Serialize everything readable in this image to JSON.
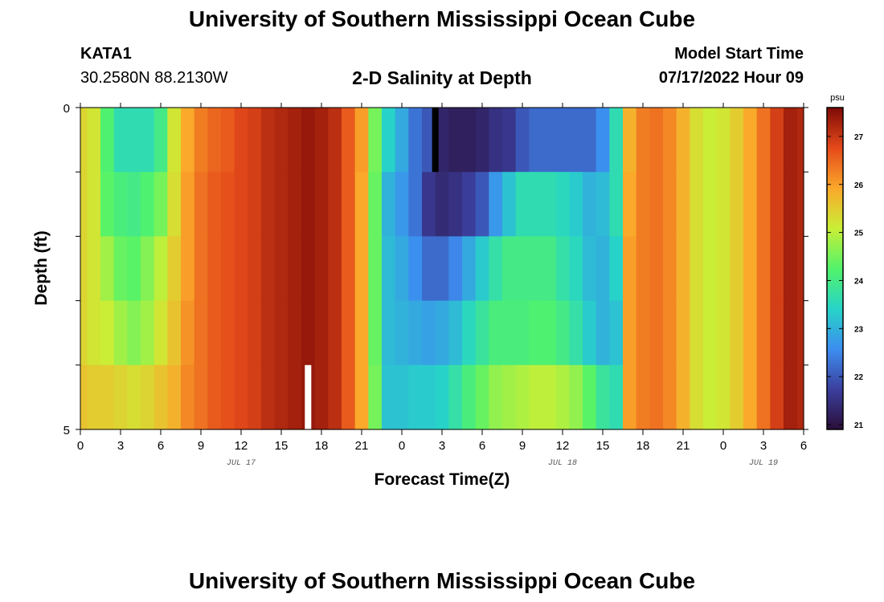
{
  "header": {
    "title": "University of Southern Mississippi Ocean Cube",
    "station_id": "KATA1",
    "station_coords": "30.2580N  88.2130W",
    "plot_title": "2-D Salinity at Depth",
    "model_label": "Model Start Time",
    "model_time": "07/17/2022 Hour 09"
  },
  "footer": {
    "title": "University of Southern Mississippi Ocean Cube"
  },
  "chart_data": {
    "type": "heatmap",
    "title": "2-D Salinity at Depth",
    "xlabel": "Forecast Time(Z)",
    "ylabel": "Depth (ft)",
    "ylim": [
      0,
      5
    ],
    "y_tick_labels": [
      "0",
      "5"
    ],
    "x_tick_labels": [
      "0",
      "3",
      "6",
      "9",
      "12",
      "15",
      "18",
      "21",
      "0",
      "3",
      "6",
      "9",
      "12",
      "15",
      "18",
      "21",
      "0",
      "3",
      "6"
    ],
    "date_labels": [
      {
        "label": "JUL 17",
        "hour": 12
      },
      {
        "label": "JUL 18",
        "hour": 36
      },
      {
        "label": "JUL 19",
        "hour": 51
      }
    ],
    "x_hours_range": [
      0,
      54
    ],
    "colorbar": {
      "unit": "psu",
      "min": 20.9,
      "max": 27.6,
      "tick_values": [
        21,
        22,
        23,
        24,
        25,
        26,
        27
      ],
      "colors": [
        "#2a0e38",
        "#3b3f9e",
        "#3c8ef0",
        "#27d4c7",
        "#52f36a",
        "#c9ef36",
        "#fba72a",
        "#e4491a",
        "#7e0a06"
      ]
    },
    "depth_layers": [
      0,
      1,
      2,
      3,
      4,
      5
    ],
    "column_hours": [
      0,
      1,
      2,
      3,
      4,
      5,
      6,
      7,
      8,
      9,
      10,
      11,
      12,
      13,
      14,
      15,
      16,
      17,
      18,
      19,
      20,
      21,
      22,
      23,
      24,
      25,
      26,
      27,
      28,
      29,
      30,
      31,
      32,
      33,
      34,
      35,
      36,
      37,
      38,
      39,
      40,
      41,
      42,
      43,
      44,
      45,
      46,
      47,
      48,
      49,
      50,
      51,
      52,
      53,
      54
    ],
    "salinity_psu": [
      [
        25.4,
        25.2,
        24.2,
        23.6,
        23.6,
        23.6,
        24.0,
        25.2,
        25.9,
        26.3,
        26.5,
        26.6,
        26.8,
        26.9,
        27.1,
        27.2,
        27.3,
        27.4,
        27.3,
        27.1,
        26.6,
        26.0,
        24.5,
        23.4,
        22.9,
        22.3,
        22.0,
        21.3,
        21.2,
        21.2,
        21.3,
        21.5,
        21.6,
        22.0,
        22.2,
        22.2,
        22.2,
        22.2,
        22.2,
        22.6,
        23.6,
        25.8,
        26.3,
        26.4,
        26.2,
        25.8,
        25.3,
        25.1,
        25.2,
        25.5,
        25.9,
        26.4,
        26.9,
        27.3,
        27.2
      ],
      [
        25.4,
        25.2,
        24.3,
        24.1,
        24.0,
        24.2,
        24.5,
        25.3,
        26.0,
        26.4,
        26.6,
        26.7,
        26.8,
        26.9,
        27.1,
        27.2,
        27.3,
        27.4,
        27.3,
        27.1,
        26.6,
        25.9,
        24.4,
        23.0,
        22.7,
        22.3,
        21.6,
        21.4,
        21.5,
        21.7,
        22.0,
        22.7,
        23.2,
        23.6,
        23.6,
        23.6,
        23.5,
        23.3,
        23.0,
        23.1,
        23.6,
        25.9,
        26.3,
        26.4,
        26.2,
        25.8,
        25.3,
        25.1,
        25.2,
        25.5,
        25.9,
        26.4,
        26.9,
        27.3,
        27.2
      ],
      [
        25.4,
        25.2,
        24.8,
        24.4,
        24.3,
        24.6,
        25.0,
        25.5,
        26.0,
        26.4,
        26.6,
        26.7,
        26.8,
        26.9,
        27.1,
        27.2,
        27.3,
        27.4,
        27.3,
        27.1,
        26.6,
        25.9,
        24.4,
        23.1,
        22.9,
        22.6,
        22.2,
        22.2,
        22.5,
        22.9,
        23.3,
        23.7,
        24.0,
        24.0,
        24.0,
        24.0,
        23.7,
        23.5,
        23.1,
        23.0,
        23.4,
        26.0,
        26.3,
        26.4,
        26.2,
        25.8,
        25.3,
        25.1,
        25.2,
        25.5,
        25.9,
        26.4,
        26.9,
        27.3,
        27.2
      ],
      [
        25.4,
        25.2,
        25.1,
        24.8,
        24.6,
        24.8,
        25.2,
        25.6,
        26.1,
        26.4,
        26.6,
        26.7,
        26.8,
        26.9,
        27.1,
        27.2,
        27.3,
        27.4,
        27.3,
        27.1,
        26.6,
        25.9,
        24.4,
        23.1,
        23.0,
        22.9,
        22.8,
        22.9,
        23.1,
        23.5,
        23.8,
        24.1,
        24.1,
        24.1,
        24.2,
        24.2,
        24.0,
        23.7,
        23.3,
        23.0,
        23.2,
        26.0,
        26.3,
        26.4,
        26.2,
        25.8,
        25.3,
        25.1,
        25.2,
        25.5,
        25.9,
        26.4,
        26.9,
        27.3,
        27.2
      ],
      [
        25.6,
        25.5,
        25.5,
        25.4,
        25.3,
        25.4,
        25.6,
        25.8,
        26.2,
        26.4,
        26.6,
        26.7,
        26.8,
        26.9,
        27.1,
        27.2,
        27.3,
        27.4,
        27.3,
        27.1,
        26.6,
        25.9,
        24.5,
        23.2,
        23.2,
        23.3,
        23.3,
        23.4,
        23.7,
        24.1,
        24.4,
        24.7,
        24.8,
        24.9,
        25.0,
        25.0,
        24.9,
        24.7,
        24.3,
        23.8,
        23.6,
        26.0,
        26.3,
        26.4,
        26.2,
        25.8,
        25.3,
        25.1,
        25.2,
        25.5,
        25.9,
        26.4,
        26.9,
        27.3,
        27.2
      ]
    ],
    "markers": [
      {
        "hour": 26.5,
        "layer": 0,
        "color": "#000000"
      },
      {
        "hour": 17,
        "layer": 4,
        "color": "#ffffff"
      }
    ]
  }
}
